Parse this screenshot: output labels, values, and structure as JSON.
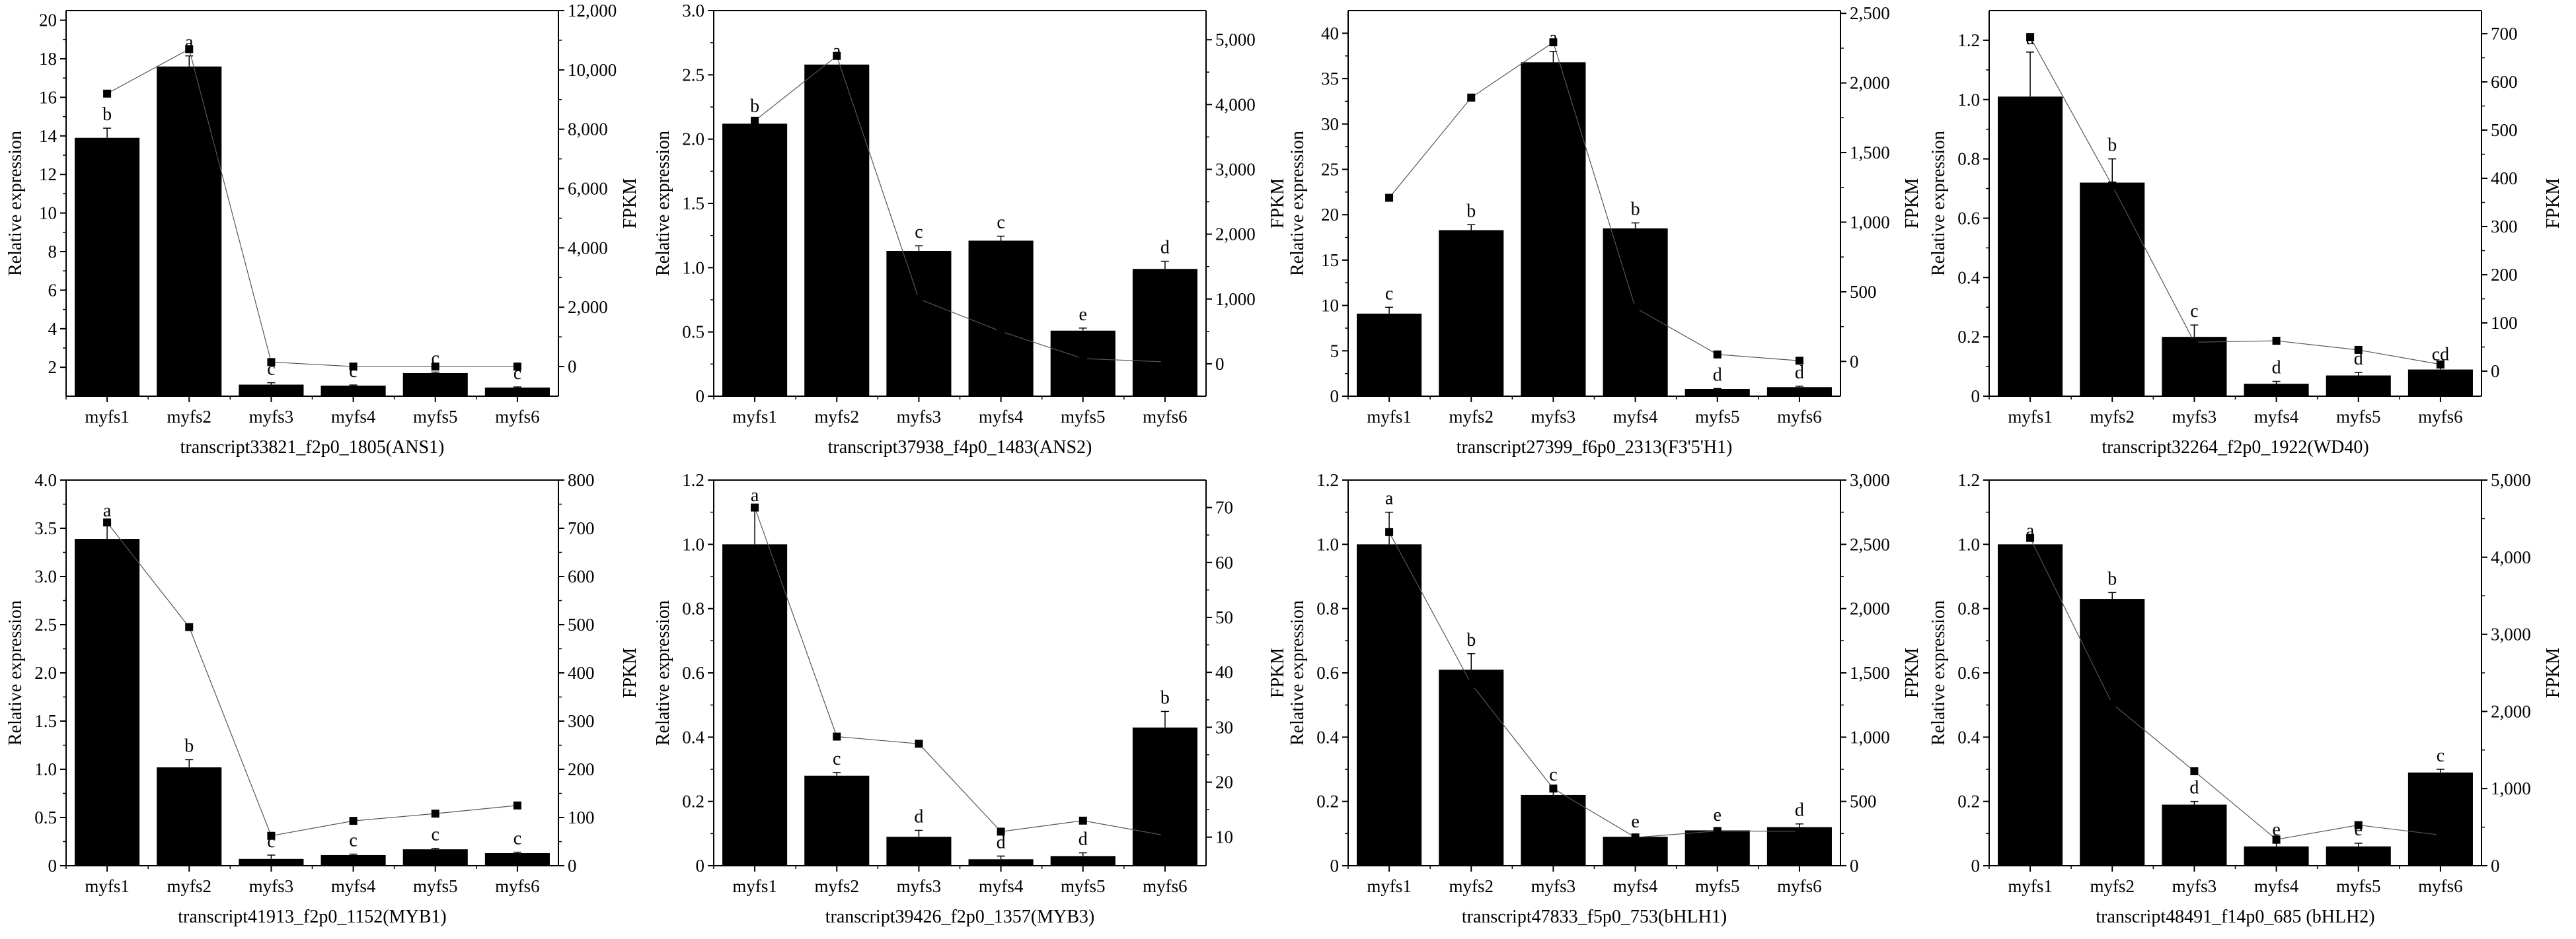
{
  "chart_data": [
    {
      "type": "bar+line",
      "title": "transcript33821_f2p0_1805(ANS1)",
      "xlabel": "transcript33821_f2p0_1805(ANS1)",
      "ylabel": "Relative expression",
      "y2label": "FPKM",
      "categories": [
        "myfs1",
        "myfs2",
        "myfs3",
        "myfs4",
        "myfs5",
        "myfs6"
      ],
      "bars": [
        13.9,
        17.6,
        1.1,
        1.05,
        1.7,
        0.95
      ],
      "errors": [
        0.5,
        0.55,
        0.1,
        0.03,
        0.05,
        0.03
      ],
      "letters": [
        "b",
        "a",
        "c",
        "c",
        "c",
        "c"
      ],
      "fpkm": [
        9200,
        10700,
        150,
        0,
        0,
        0
      ],
      "ylim": [
        0.5,
        20.5
      ],
      "yticks": [
        2,
        4,
        6,
        8,
        10,
        12,
        14,
        16,
        18,
        20
      ],
      "ytick_labels": [
        "2",
        "4",
        "6",
        "8",
        "10",
        "12",
        "14",
        "16",
        "18",
        "20"
      ],
      "y2lim": [
        -1000,
        12000
      ],
      "y2ticks": [
        0,
        2000,
        4000,
        6000,
        8000,
        10000,
        12000
      ],
      "y2tick_labels": [
        "0",
        "2,000",
        "4,000",
        "6,000",
        "8,000",
        "10,000",
        "12,000"
      ],
      "bar_color": "#000000",
      "line_color": "#555555"
    },
    {
      "type": "bar+line",
      "title": "transcript37938_f4p0_1483(ANS2)",
      "xlabel": "transcript37938_f4p0_1483(ANS2)",
      "ylabel": "Relative expression",
      "y2label": "FPKM",
      "categories": [
        "myfs1",
        "myfs2",
        "myfs3",
        "myfs4",
        "myfs5",
        "myfs6"
      ],
      "bars": [
        2.12,
        2.58,
        1.13,
        1.21,
        0.51,
        0.99
      ],
      "errors": [
        0.03,
        0.0,
        0.04,
        0.035,
        0.02,
        0.06
      ],
      "letters": [
        "b",
        "a",
        "c",
        "c",
        "e",
        "d"
      ],
      "fpkm": [
        3750,
        4750,
        1000,
        500,
        80,
        30
      ],
      "ylim": [
        0,
        3
      ],
      "yticks": [
        0,
        0.5,
        1,
        1.5,
        2,
        2.5,
        3
      ],
      "ytick_labels": [
        "0",
        "0.5",
        "1.0",
        "1.5",
        "2.0",
        "2.5",
        "3.0"
      ],
      "y2lim": [
        -500,
        5450
      ],
      "y2ticks": [
        0,
        1000,
        2000,
        3000,
        4000,
        5000
      ],
      "y2tick_labels": [
        "0",
        "1,000",
        "2,000",
        "3,000",
        "4,000",
        "5,000"
      ],
      "bar_color": "#000000",
      "line_color": "#555555"
    },
    {
      "type": "bar+line",
      "title": "transcript27399_f6p0_2313(F3'5'H1)",
      "xlabel": "transcript27399_f6p0_2313(F3'5'H1)",
      "ylabel": "Relative expression",
      "y2label": "FPKM",
      "categories": [
        "myfs1",
        "myfs2",
        "myfs3",
        "myfs4",
        "myfs5",
        "myfs6"
      ],
      "bars": [
        9.1,
        18.3,
        36.8,
        18.5,
        0.8,
        1.0
      ],
      "errors": [
        0.7,
        0.6,
        1.2,
        0.6,
        0.05,
        0.1
      ],
      "letters": [
        "c",
        "b",
        "a",
        "b",
        "d",
        "d"
      ],
      "fpkm": [
        1175,
        1895,
        2292,
        385,
        50,
        5
      ],
      "ylim": [
        0,
        42.5
      ],
      "yticks": [
        0,
        5,
        10,
        15,
        20,
        25,
        30,
        35,
        40
      ],
      "ytick_labels": [
        "0",
        "5",
        "10",
        "15",
        "20",
        "25",
        "30",
        "35",
        "40"
      ],
      "y2lim": [
        -250,
        2520
      ],
      "y2ticks": [
        0,
        500,
        1000,
        1500,
        2000,
        2500
      ],
      "y2tick_labels": [
        "0",
        "500",
        "1,000",
        "1,500",
        "2,000",
        "2,500"
      ],
      "bar_color": "#000000",
      "line_color": "#555555"
    },
    {
      "type": "bar+line",
      "title": "transcript32264_f2p0_1922(WD40)",
      "xlabel": "transcript32264_f2p0_1922(WD40)",
      "ylabel": "Relative expression",
      "y2label": "FPKM",
      "categories": [
        "myfs1",
        "myfs2",
        "myfs3",
        "myfs4",
        "myfs5",
        "myfs6"
      ],
      "bars": [
        1.01,
        0.72,
        0.2,
        0.042,
        0.07,
        0.09
      ],
      "errors": [
        0.15,
        0.08,
        0.04,
        0.008,
        0.01,
        0.005
      ],
      "letters": [
        "a",
        "b",
        "c",
        "d",
        "d",
        "cd"
      ],
      "fpkm": [
        693,
        385,
        60,
        63,
        44,
        14
      ],
      "ylim": [
        0,
        1.3
      ],
      "yticks": [
        0,
        0.2,
        0.4,
        0.6,
        0.8,
        1.0,
        1.2
      ],
      "ytick_labels": [
        "0",
        "0.2",
        "0.4",
        "0.6",
        "0.8",
        "1.0",
        "1.2"
      ],
      "y2lim": [
        -52,
        748
      ],
      "y2ticks": [
        0,
        100,
        200,
        300,
        400,
        500,
        600,
        700
      ],
      "y2tick_labels": [
        "0",
        "100",
        "200",
        "300",
        "400",
        "500",
        "600",
        "700"
      ],
      "bar_color": "#000000",
      "line_color": "#555555"
    },
    {
      "type": "bar+line",
      "title": "transcript41913_f2p0_1152(MYB1)",
      "xlabel": "transcript41913_f2p0_1152(MYB1)",
      "ylabel": "Relative expression",
      "y2label": "FPKM",
      "categories": [
        "myfs1",
        "myfs2",
        "myfs3",
        "myfs4",
        "myfs5",
        "myfs6"
      ],
      "bars": [
        3.39,
        1.02,
        0.07,
        0.11,
        0.17,
        0.13
      ],
      "errors": [
        0.15,
        0.08,
        0.04,
        0.01,
        0.01,
        0.01
      ],
      "letters": [
        "a",
        "b",
        "c",
        "c",
        "c",
        "c"
      ],
      "fpkm": [
        712,
        495,
        62,
        93,
        108,
        125
      ],
      "ylim": [
        0,
        4
      ],
      "yticks": [
        0,
        0.5,
        1,
        1.5,
        2,
        2.5,
        3,
        3.5,
        4
      ],
      "ytick_labels": [
        "0",
        "0.5",
        "1.0",
        "1.5",
        "2.0",
        "2.5",
        "3.0",
        "3.5",
        "4.0"
      ],
      "y2lim": [
        0,
        800
      ],
      "y2ticks": [
        0,
        100,
        200,
        300,
        400,
        500,
        600,
        700,
        800
      ],
      "y2tick_labels": [
        "0",
        "100",
        "200",
        "300",
        "400",
        "500",
        "600",
        "700",
        "800"
      ],
      "bar_color": "#000000",
      "line_color": "#555555"
    },
    {
      "type": "bar+line",
      "title": "transcript39426_f2p0_1357(MYB3)",
      "xlabel": "transcript39426_f2p0_1357(MYB3)",
      "ylabel": "Relative expression",
      "y2label": "FPKM",
      "categories": [
        "myfs1",
        "myfs2",
        "myfs3",
        "myfs4",
        "myfs5",
        "myfs6"
      ],
      "bars": [
        1.0,
        0.28,
        0.09,
        0.02,
        0.03,
        0.43
      ],
      "errors": [
        0.11,
        0.01,
        0.02,
        0.01,
        0.01,
        0.05
      ],
      "letters": [
        "a",
        "c",
        "d",
        "d",
        "d",
        "b"
      ],
      "fpkm": [
        70,
        28.3,
        27,
        11,
        13,
        10.3
      ],
      "ylim": [
        0,
        1.2
      ],
      "yticks": [
        0,
        0.2,
        0.4,
        0.6,
        0.8,
        1.0,
        1.2
      ],
      "ytick_labels": [
        "0",
        "0.2",
        "0.4",
        "0.6",
        "0.8",
        "1.0",
        "1.2"
      ],
      "y2lim": [
        4.8,
        75
      ],
      "y2ticks": [
        10,
        20,
        30,
        40,
        50,
        60,
        70
      ],
      "y2tick_labels": [
        "10",
        "20",
        "30",
        "40",
        "50",
        "60",
        "70"
      ],
      "bar_color": "#000000",
      "line_color": "#555555"
    },
    {
      "type": "bar+line",
      "title": "transcript47833_f5p0_753(bHLH1)",
      "xlabel": "transcript47833_f5p0_753(bHLH1)",
      "ylabel": "Relative expression",
      "y2label": "FPKM",
      "categories": [
        "myfs1",
        "myfs2",
        "myfs3",
        "myfs4",
        "myfs5",
        "myfs6"
      ],
      "bars": [
        1.0,
        0.61,
        0.22,
        0.09,
        0.11,
        0.12
      ],
      "errors": [
        0.1,
        0.05,
        0.02,
        0.005,
        0.005,
        0.01
      ],
      "letters": [
        "a",
        "b",
        "c",
        "e",
        "e",
        "d"
      ],
      "fpkm": [
        2595,
        1415,
        600,
        220,
        270,
        268
      ],
      "ylim": [
        0,
        1.2
      ],
      "yticks": [
        0,
        0.2,
        0.4,
        0.6,
        0.8,
        1.0,
        1.2
      ],
      "ytick_labels": [
        "0",
        "0.2",
        "0.4",
        "0.6",
        "0.8",
        "1.0",
        "1.2"
      ],
      "y2lim": [
        0,
        3000
      ],
      "y2ticks": [
        0,
        500,
        1000,
        1500,
        2000,
        2500,
        3000
      ],
      "y2tick_labels": [
        "0",
        "500",
        "1,000",
        "1,500",
        "2,000",
        "2,500",
        "3,000"
      ],
      "bar_color": "#000000",
      "line_color": "#555555"
    },
    {
      "type": "bar+line",
      "title": "transcript48491_f14p0_685 (bHLH2)",
      "xlabel": "transcript48491_f14p0_685 (bHLH2)",
      "ylabel": "Relative expression",
      "y2label": "FPKM",
      "categories": [
        "myfs1",
        "myfs2",
        "myfs3",
        "myfs4",
        "myfs5",
        "myfs6"
      ],
      "bars": [
        1.0,
        0.83,
        0.19,
        0.06,
        0.06,
        0.29
      ],
      "errors": [
        0.0,
        0.02,
        0.01,
        0.01,
        0.01,
        0.01
      ],
      "letters": [
        "a",
        "b",
        "d",
        "e",
        "e",
        "c"
      ],
      "fpkm": [
        4250,
        2100,
        1225,
        340,
        527,
        398
      ],
      "ylim": [
        0,
        1.2
      ],
      "yticks": [
        0,
        0.2,
        0.4,
        0.6,
        0.8,
        1.0,
        1.2
      ],
      "ytick_labels": [
        "0",
        "0.2",
        "0.4",
        "0.6",
        "0.8",
        "1.0",
        "1.2"
      ],
      "y2lim": [
        0,
        5000
      ],
      "y2ticks": [
        0,
        1000,
        2000,
        3000,
        4000,
        5000
      ],
      "y2tick_labels": [
        "0",
        "1,000",
        "2,000",
        "3,000",
        "4,000",
        "5,000"
      ],
      "bar_color": "#000000",
      "line_color": "#555555"
    }
  ]
}
